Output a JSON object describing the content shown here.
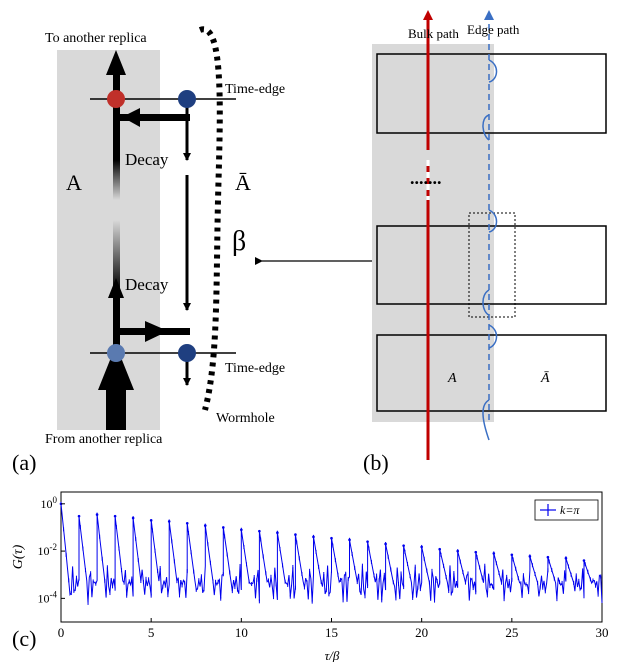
{
  "panel_a": {
    "top_label": "To another replica",
    "bottom_label": "From another replica",
    "time_edge_top": "Time-edge",
    "time_edge_bottom": "Time-edge",
    "decay_top": "Decay",
    "decay_bottom": "Decay",
    "region_a": "A",
    "region_abar": "Ā",
    "beta": "β",
    "wormhole": "Wormhole",
    "panel_label": "(a)"
  },
  "panel_b": {
    "bulk_path": "Bulk path",
    "edge_path": "Edge path",
    "region_a": "A",
    "region_abar": "Ā",
    "panel_label": "(b)"
  },
  "panel_c": {
    "panel_label": "(c)",
    "colors": {
      "series": "#0000ee"
    }
  },
  "chart_data": {
    "type": "line",
    "title": "",
    "xlabel": "τ/β",
    "ylabel": "G(τ)",
    "xlim": [
      0,
      30
    ],
    "ylim_log10": [
      -5,
      0.5
    ],
    "y_scale": "log",
    "x_ticks": [
      "0",
      "5",
      "10",
      "15",
      "20",
      "25",
      "30"
    ],
    "y_ticks": [
      "10^0",
      "10^-2",
      "10^-4"
    ],
    "legend": "top-right",
    "series": [
      {
        "name": "k=π",
        "peak_positions": [
          0.0,
          1.0,
          2.0,
          3.0,
          4.0,
          5.0,
          6.0,
          7.0,
          8.0,
          9.0,
          10.0,
          11.0,
          12.0,
          13.0,
          14.0,
          15.0,
          16.0,
          17.0,
          18.0,
          19.0,
          20.0,
          21.0,
          22.0,
          23.0,
          24.0,
          25.0,
          26.0,
          27.0,
          28.0,
          29.0
        ],
        "peak_values": [
          1.0,
          0.3,
          0.35,
          0.3,
          0.25,
          0.2,
          0.18,
          0.15,
          0.12,
          0.1,
          0.08,
          0.07,
          0.06,
          0.05,
          0.04,
          0.035,
          0.03,
          0.025,
          0.02,
          0.017,
          0.015,
          0.012,
          0.01,
          0.009,
          0.008,
          0.007,
          0.006,
          0.0055,
          0.005,
          0.004
        ],
        "floor_value": 0.0001
      }
    ]
  }
}
